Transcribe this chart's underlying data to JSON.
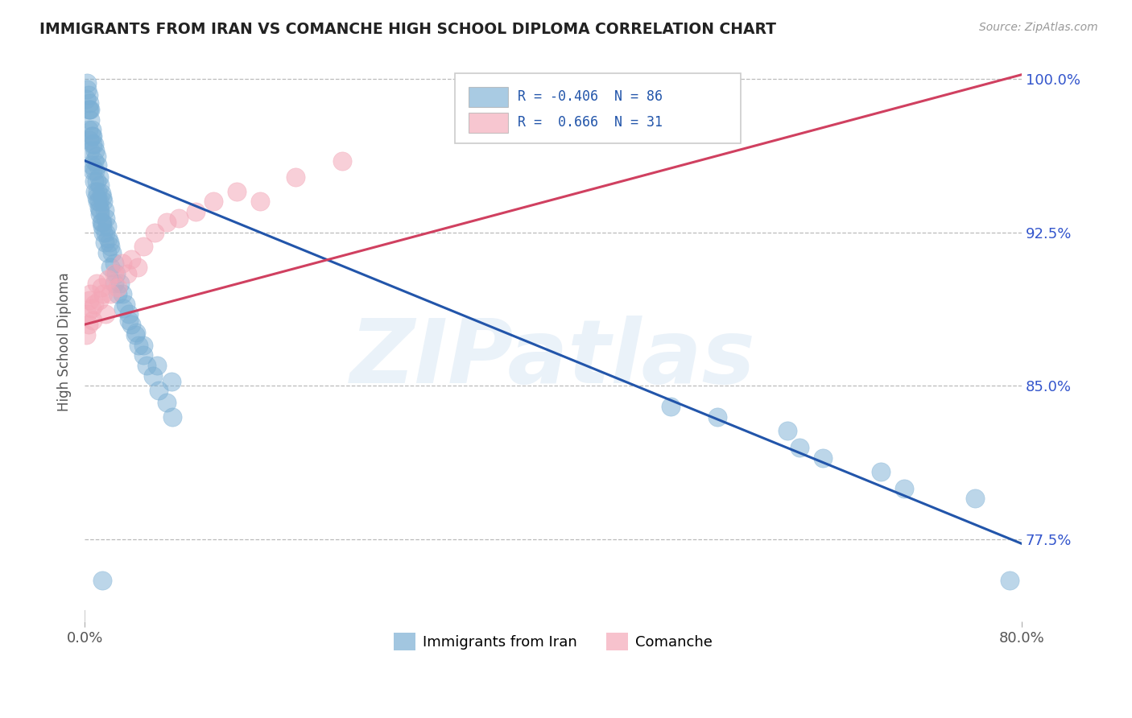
{
  "title": "IMMIGRANTS FROM IRAN VS COMANCHE HIGH SCHOOL DIPLOMA CORRELATION CHART",
  "source": "Source: ZipAtlas.com",
  "ylabel": "High School Diploma",
  "legend_labels": [
    "Immigrants from Iran",
    "Comanche"
  ],
  "blue_R": -0.406,
  "blue_N": 86,
  "pink_R": 0.666,
  "pink_N": 31,
  "xlim": [
    0.0,
    0.8
  ],
  "ylim": [
    0.735,
    1.008
  ],
  "yticks": [
    0.775,
    0.85,
    0.925,
    1.0
  ],
  "ytick_labels": [
    "77.5%",
    "85.0%",
    "92.5%",
    "100.0%"
  ],
  "xticks": [
    0.0,
    0.8
  ],
  "xtick_labels": [
    "0.0%",
    "80.0%"
  ],
  "blue_color": "#7bafd4",
  "pink_color": "#f4a8b8",
  "blue_line_color": "#2255aa",
  "pink_line_color": "#d04060",
  "background_color": "#ffffff",
  "watermark": "ZIPatlas",
  "blue_line_x0": 0.0,
  "blue_line_y0": 0.96,
  "blue_line_x1": 0.8,
  "blue_line_y1": 0.773,
  "pink_line_x0": 0.0,
  "pink_line_y0": 0.88,
  "pink_line_x1": 0.8,
  "pink_line_y1": 1.002,
  "blue_x": [
    0.001,
    0.002,
    0.003,
    0.003,
    0.004,
    0.004,
    0.005,
    0.005,
    0.006,
    0.006,
    0.007,
    0.007,
    0.008,
    0.008,
    0.009,
    0.009,
    0.01,
    0.01,
    0.011,
    0.011,
    0.012,
    0.012,
    0.013,
    0.013,
    0.014,
    0.014,
    0.015,
    0.015,
    0.016,
    0.017,
    0.018,
    0.018,
    0.019,
    0.02,
    0.021,
    0.022,
    0.023,
    0.025,
    0.027,
    0.03,
    0.032,
    0.035,
    0.038,
    0.04,
    0.043,
    0.046,
    0.05,
    0.053,
    0.058,
    0.063,
    0.07,
    0.075,
    0.002,
    0.003,
    0.004,
    0.005,
    0.006,
    0.007,
    0.008,
    0.009,
    0.01,
    0.011,
    0.012,
    0.013,
    0.015,
    0.016,
    0.017,
    0.019,
    0.022,
    0.025,
    0.028,
    0.033,
    0.038,
    0.044,
    0.05,
    0.062,
    0.074,
    0.015,
    0.5,
    0.54,
    0.6,
    0.61,
    0.63,
    0.68,
    0.7,
    0.76,
    0.79
  ],
  "blue_y": [
    0.99,
    0.995,
    0.985,
    0.975,
    0.985,
    0.97,
    0.985,
    0.965,
    0.975,
    0.958,
    0.972,
    0.955,
    0.968,
    0.95,
    0.965,
    0.945,
    0.962,
    0.942,
    0.958,
    0.94,
    0.952,
    0.937,
    0.948,
    0.934,
    0.944,
    0.93,
    0.942,
    0.928,
    0.94,
    0.936,
    0.932,
    0.925,
    0.928,
    0.922,
    0.92,
    0.918,
    0.915,
    0.91,
    0.905,
    0.9,
    0.895,
    0.89,
    0.885,
    0.88,
    0.875,
    0.87,
    0.865,
    0.86,
    0.855,
    0.848,
    0.842,
    0.835,
    0.998,
    0.992,
    0.988,
    0.98,
    0.972,
    0.968,
    0.96,
    0.955,
    0.95,
    0.945,
    0.94,
    0.936,
    0.93,
    0.925,
    0.92,
    0.915,
    0.908,
    0.9,
    0.895,
    0.888,
    0.882,
    0.876,
    0.87,
    0.86,
    0.852,
    0.755,
    0.84,
    0.835,
    0.828,
    0.82,
    0.815,
    0.808,
    0.8,
    0.795,
    0.755
  ],
  "pink_x": [
    0.001,
    0.002,
    0.003,
    0.004,
    0.005,
    0.006,
    0.007,
    0.008,
    0.01,
    0.012,
    0.014,
    0.016,
    0.018,
    0.02,
    0.022,
    0.025,
    0.028,
    0.032,
    0.036,
    0.04,
    0.045,
    0.05,
    0.06,
    0.07,
    0.08,
    0.095,
    0.11,
    0.13,
    0.15,
    0.18,
    0.22
  ],
  "pink_y": [
    0.875,
    0.885,
    0.88,
    0.892,
    0.895,
    0.888,
    0.882,
    0.89,
    0.9,
    0.892,
    0.898,
    0.895,
    0.885,
    0.902,
    0.895,
    0.905,
    0.898,
    0.91,
    0.905,
    0.912,
    0.908,
    0.918,
    0.925,
    0.93,
    0.932,
    0.935,
    0.94,
    0.945,
    0.94,
    0.952,
    0.96
  ]
}
